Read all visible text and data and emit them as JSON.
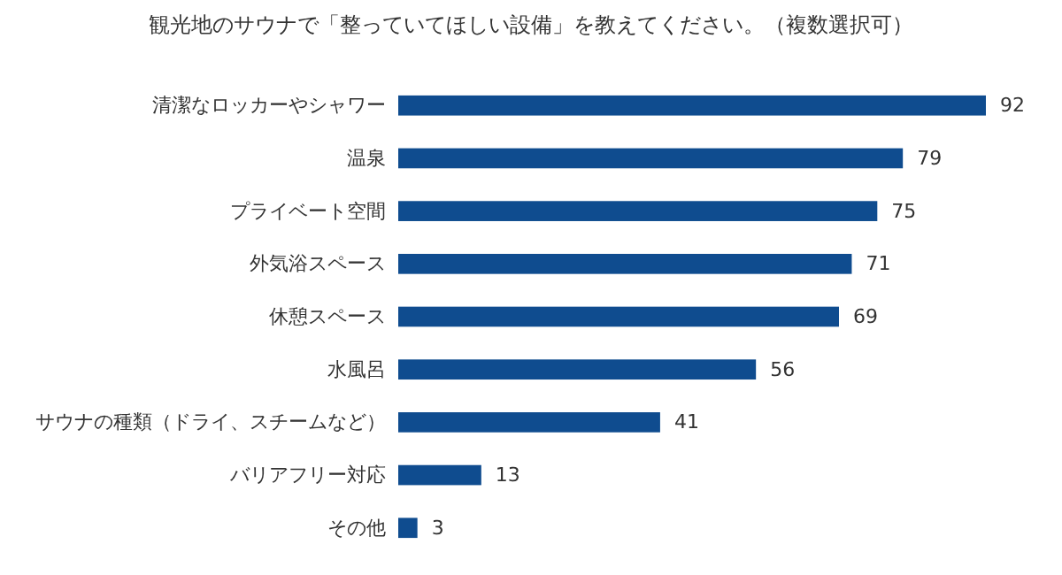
{
  "chart_data": {
    "type": "bar",
    "orientation": "horizontal",
    "title": "観光地のサウナで「整っていてほしい設備」を教えてください。（複数選択可）",
    "categories": [
      "清潔なロッカーやシャワー",
      "温泉",
      "プライベート空間",
      "外気浴スペース",
      "休憩スペース",
      "水風呂",
      "サウナの種類（ドライ、スチームなど）",
      "バリアフリー対応",
      "その他"
    ],
    "values": [
      92,
      79,
      75,
      71,
      69,
      56,
      41,
      13,
      3
    ],
    "color": "#0f4c8f",
    "data_labels": true
  }
}
